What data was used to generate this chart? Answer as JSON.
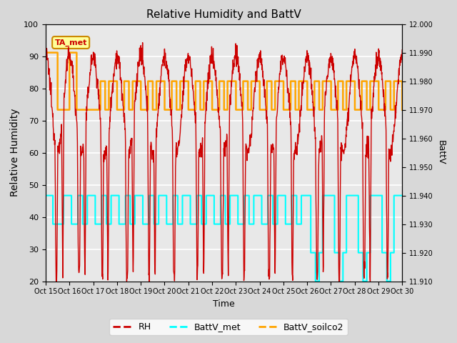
{
  "title": "Relative Humidity and BattV",
  "xlabel": "Time",
  "ylabel_left": "Relative Humidity",
  "ylabel_right": "BattV",
  "ylim_left": [
    20,
    100
  ],
  "ylim_right": [
    11.91,
    12.0
  ],
  "yticks_left": [
    20,
    30,
    40,
    50,
    60,
    70,
    80,
    90,
    100
  ],
  "yticks_right": [
    11.91,
    11.92,
    11.93,
    11.94,
    11.95,
    11.96,
    11.97,
    11.98,
    11.99,
    12.0
  ],
  "xtick_labels": [
    "Oct 15",
    "Oct 16",
    "Oct 17",
    "Oct 18",
    "Oct 19",
    "Oct 20",
    "Oct 21",
    "Oct 22",
    "Oct 23",
    "Oct 24",
    "Oct 25",
    "Oct 26",
    "Oct 27",
    "Oct 28",
    "Oct 29",
    "Oct 30"
  ],
  "bg_color": "#d8d8d8",
  "plot_bg_color": "#e8e8e8",
  "grid_color": "white",
  "rh_color": "#cc0000",
  "battv_met_color": "cyan",
  "battv_soilco2_color": "orange",
  "annotation_text": "TA_met",
  "annotation_bg": "#ffff99",
  "annotation_edge": "#cc8800",
  "figsize": [
    6.4,
    4.8
  ],
  "dpi": 100
}
